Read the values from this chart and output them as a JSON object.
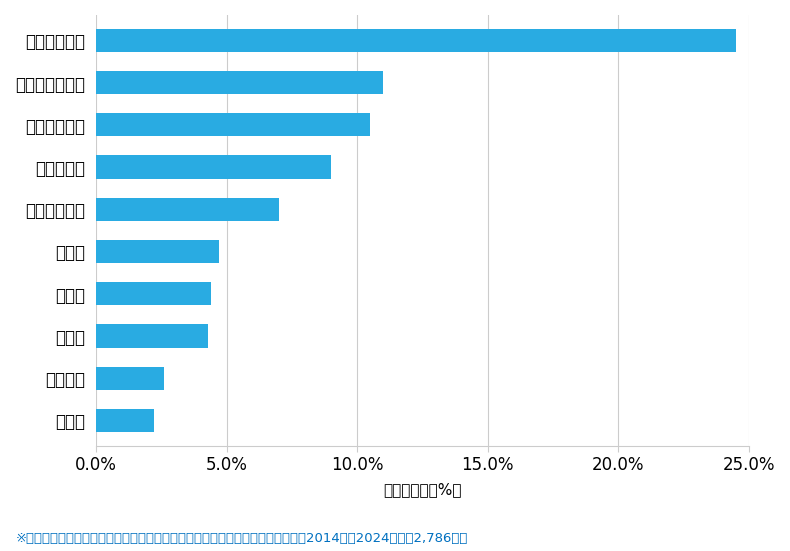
{
  "categories": [
    "塩竈市",
    "多賀城市",
    "名取市",
    "大崎市",
    "石巻市",
    "仙台市若林区",
    "仙台市泉区",
    "仙台市太白区",
    "仙台市宮城野区",
    "仙台市青葉区"
  ],
  "values": [
    2.2,
    2.6,
    4.3,
    4.4,
    4.7,
    7.0,
    9.0,
    10.5,
    11.0,
    24.5
  ],
  "bar_color": "#29ABE2",
  "xlim": [
    0,
    25.0
  ],
  "xtick_values": [
    0,
    5.0,
    10.0,
    15.0,
    20.0,
    25.0
  ],
  "xtick_labels": [
    "0.0%",
    "5.0%",
    "10.0%",
    "15.0%",
    "20.0%",
    "25.0%"
  ],
  "xlabel": "件数の割合（%）",
  "footnote": "※弊社受付の案件を対象に、受付時に市区町村の回答があったものを集計（期間2014年〜2024年、計2,786件）",
  "footnote_color": "#0070C0",
  "bg_color": "#FFFFFF",
  "bar_height": 0.55,
  "grid_color": "#CCCCCC",
  "tick_label_fontsize": 12,
  "xlabel_fontsize": 11,
  "footnote_fontsize": 9.5
}
